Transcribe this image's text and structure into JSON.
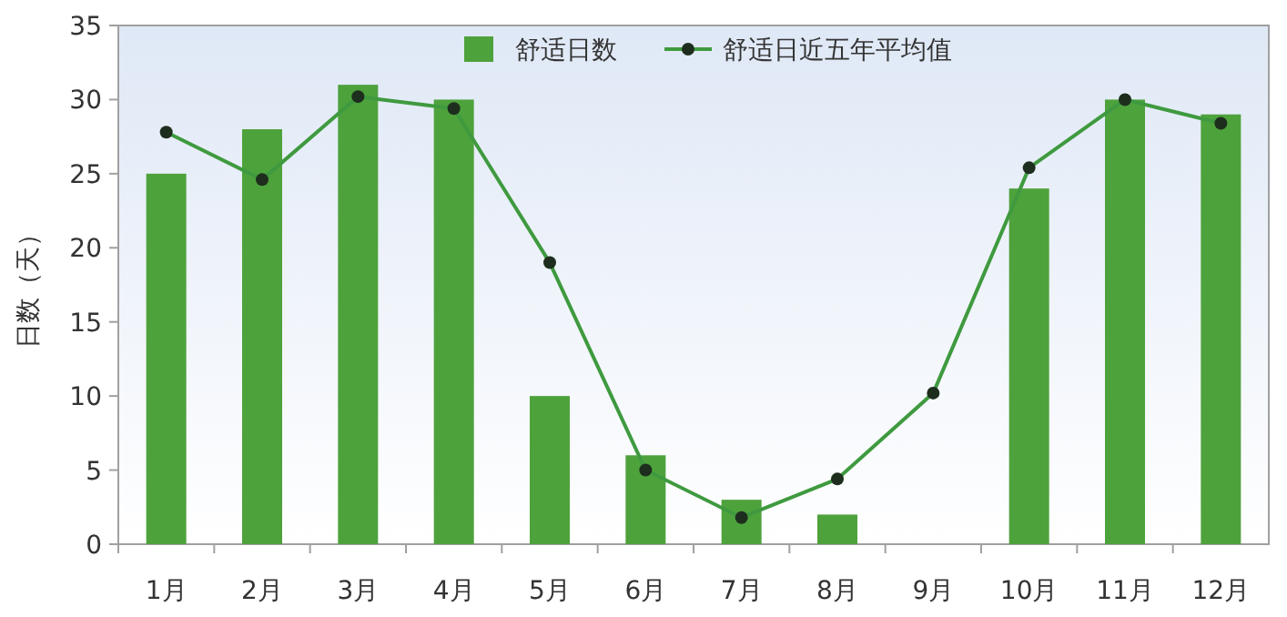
{
  "chart_data": {
    "type": "bar",
    "ylabel": "日数（天）",
    "categories": [
      "1月",
      "2月",
      "3月",
      "4月",
      "5月",
      "6月",
      "7月",
      "8月",
      "9月",
      "10月",
      "11月",
      "12月"
    ],
    "series": [
      {
        "name": "舒适日数",
        "color": "#4ea23c",
        "values": [
          25,
          28,
          31,
          30,
          10,
          6,
          3,
          2,
          0,
          24,
          30,
          29
        ]
      },
      {
        "name": "舒适日近五年平均值",
        "type": "line",
        "color": "#3f9a3f",
        "values": [
          27.8,
          24.6,
          30.2,
          29.4,
          19,
          5,
          1.8,
          4.4,
          10.2,
          25.4,
          30,
          28.4
        ]
      }
    ],
    "ylim": [
      0,
      35
    ],
    "yticks": [
      0,
      5,
      10,
      15,
      20,
      25,
      30,
      35
    ],
    "legend": "top",
    "marker": "circle"
  }
}
